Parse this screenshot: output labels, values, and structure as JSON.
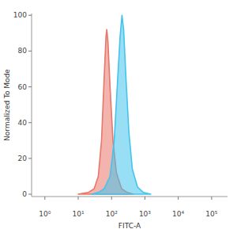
{
  "chart_data": {
    "type": "area",
    "x_label": "FITC-A",
    "y_label": "Normalized To Mode",
    "log": "x",
    "xlim": [
      0.4,
      300000
    ],
    "ylim": [
      -1.3,
      101
    ],
    "xticks": [
      {
        "value": 1,
        "label": "10⁰"
      },
      {
        "value": 10,
        "label": "10¹"
      },
      {
        "value": 100,
        "label": "10²"
      },
      {
        "value": 1000,
        "label": "10³"
      },
      {
        "value": 10000,
        "label": "10⁴"
      },
      {
        "value": 100000,
        "label": "10⁵"
      }
    ],
    "yticks": [
      0,
      20,
      40,
      60,
      80,
      100
    ],
    "series": [
      {
        "color": "#e8766a",
        "x": [
          10,
          20,
          30,
          40,
          50,
          60,
          68,
          72,
          78,
          90,
          110,
          140,
          200,
          300,
          450
        ],
        "values": [
          0,
          1,
          3,
          10,
          30,
          65,
          88,
          92,
          85,
          60,
          30,
          12,
          3,
          1,
          0
        ]
      },
      {
        "color": "#44c4ec",
        "x": [
          25,
          40,
          60,
          90,
          120,
          150,
          180,
          205,
          230,
          270,
          330,
          420,
          600,
          900,
          1500
        ],
        "values": [
          0,
          1,
          3,
          10,
          30,
          62,
          88,
          100,
          92,
          65,
          35,
          14,
          4,
          1,
          0
        ]
      }
    ]
  }
}
